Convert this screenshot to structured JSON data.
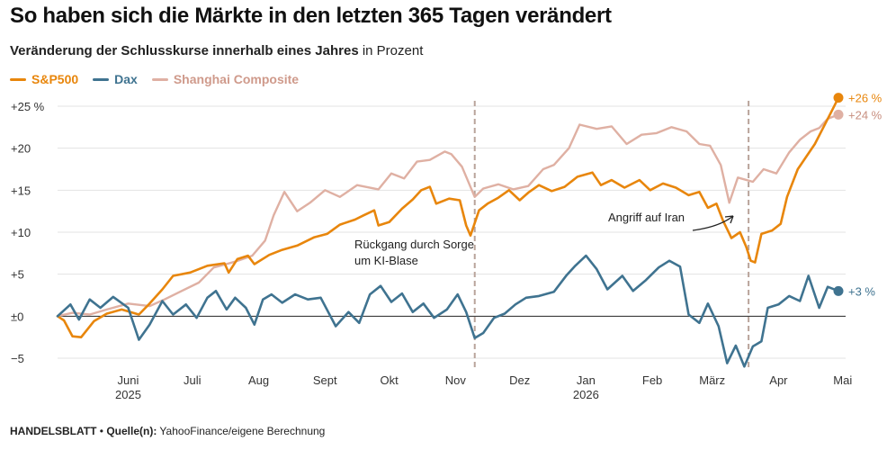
{
  "header": {
    "title": "So haben sich die Märkte in den letzten 365 Tagen verändert",
    "subtitle_bold": "Veränderung der Schlusskurse innerhalb eines Jahres",
    "subtitle_rest": " in Prozent"
  },
  "legend": [
    {
      "label": "S&P500",
      "color": "#e8860c"
    },
    {
      "label": "Dax",
      "color": "#3f7390"
    },
    {
      "label": "Shanghai Composite",
      "color": "#dfb0a3"
    }
  ],
  "footer": {
    "source_bold": "HANDELSBLATT",
    "separator": " • ",
    "source_label": "Quelle(n):",
    "source_text": " YahooFinance/eigene Berechnung"
  },
  "chart_data": {
    "type": "line",
    "title": "So haben sich die Märkte in den letzten 365 Tagen verändert",
    "subtitle": "Veränderung der Schlusskurse innerhalb eines Jahres in Prozent",
    "xlim": [
      "2025-05-13",
      "2026-05-13"
    ],
    "ylim": [
      -6,
      25
    ],
    "y_ticks": [
      -5,
      0,
      5,
      10,
      15,
      20,
      25
    ],
    "y_tick_labels": [
      "−5",
      "±0",
      "+5",
      "+10",
      "+15",
      "+20",
      "+25 %"
    ],
    "x_ticks": [
      {
        "date": "2025-06-15",
        "label": "Juni",
        "year": "2025"
      },
      {
        "date": "2025-07-15",
        "label": "Juli"
      },
      {
        "date": "2025-08-15",
        "label": "Aug"
      },
      {
        "date": "2025-09-15",
        "label": "Sept"
      },
      {
        "date": "2025-10-15",
        "label": "Okt"
      },
      {
        "date": "2025-11-15",
        "label": "Nov"
      },
      {
        "date": "2025-12-15",
        "label": "Dez"
      },
      {
        "date": "2026-01-15",
        "label": "Jan",
        "year": "2026"
      },
      {
        "date": "2026-02-15",
        "label": "Feb"
      },
      {
        "date": "2026-03-15",
        "label": "März"
      },
      {
        "date": "2026-04-15",
        "label": "Apr"
      },
      {
        "date": "2026-05-15",
        "label": "Mai"
      }
    ],
    "grid": "horizontal",
    "legend_position": "top-left",
    "series": [
      {
        "name": "Shanghai Composite",
        "color": "#dfb0a3",
        "end_label": "+24 %",
        "points": [
          [
            "2025-05-13",
            0
          ],
          [
            "2025-05-20",
            0.4
          ],
          [
            "2025-05-28",
            0.2
          ],
          [
            "2025-06-05",
            0.8
          ],
          [
            "2025-06-15",
            1.5
          ],
          [
            "2025-06-25",
            1.2
          ],
          [
            "2025-07-02",
            2.0
          ],
          [
            "2025-07-10",
            3.0
          ],
          [
            "2025-07-18",
            4.0
          ],
          [
            "2025-07-25",
            5.8
          ],
          [
            "2025-08-04",
            6.5
          ],
          [
            "2025-08-12",
            7.2
          ],
          [
            "2025-08-18",
            9.0
          ],
          [
            "2025-08-22",
            12.0
          ],
          [
            "2025-08-27",
            14.8
          ],
          [
            "2025-09-02",
            12.5
          ],
          [
            "2025-09-08",
            13.5
          ],
          [
            "2025-09-15",
            15.0
          ],
          [
            "2025-09-22",
            14.2
          ],
          [
            "2025-09-30",
            15.6
          ],
          [
            "2025-10-10",
            15.1
          ],
          [
            "2025-10-16",
            17.0
          ],
          [
            "2025-10-22",
            16.4
          ],
          [
            "2025-10-28",
            18.4
          ],
          [
            "2025-11-03",
            18.6
          ],
          [
            "2025-11-10",
            19.6
          ],
          [
            "2025-11-13",
            19.3
          ],
          [
            "2025-11-18",
            17.8
          ],
          [
            "2025-11-24",
            14.2
          ],
          [
            "2025-11-28",
            15.2
          ],
          [
            "2025-12-05",
            15.7
          ],
          [
            "2025-12-12",
            15.1
          ],
          [
            "2025-12-19",
            15.5
          ],
          [
            "2025-12-26",
            17.5
          ],
          [
            "2025-12-31",
            18.0
          ],
          [
            "2026-01-07",
            20.0
          ],
          [
            "2026-01-12",
            22.8
          ],
          [
            "2026-01-20",
            22.3
          ],
          [
            "2026-01-27",
            22.6
          ],
          [
            "2026-02-03",
            20.5
          ],
          [
            "2026-02-10",
            21.6
          ],
          [
            "2026-02-17",
            21.8
          ],
          [
            "2026-02-24",
            22.5
          ],
          [
            "2026-03-03",
            22.0
          ],
          [
            "2026-03-09",
            20.5
          ],
          [
            "2026-03-14",
            20.3
          ],
          [
            "2026-03-19",
            18.0
          ],
          [
            "2026-03-23",
            13.5
          ],
          [
            "2026-03-27",
            16.5
          ],
          [
            "2026-04-03",
            16.0
          ],
          [
            "2026-04-08",
            17.5
          ],
          [
            "2026-04-14",
            17.0
          ],
          [
            "2026-04-20",
            19.5
          ],
          [
            "2026-04-25",
            21.0
          ],
          [
            "2026-04-30",
            22.0
          ],
          [
            "2026-05-04",
            22.4
          ],
          [
            "2026-05-08",
            23.5
          ],
          [
            "2026-05-13",
            24.0
          ]
        ]
      },
      {
        "name": "S&P500",
        "color": "#e8860c",
        "end_label": "+26 %",
        "points": [
          [
            "2025-05-13",
            0
          ],
          [
            "2025-05-16",
            -0.5
          ],
          [
            "2025-05-20",
            -2.4
          ],
          [
            "2025-05-24",
            -2.5
          ],
          [
            "2025-05-30",
            -0.6
          ],
          [
            "2025-06-05",
            0.3
          ],
          [
            "2025-06-12",
            0.8
          ],
          [
            "2025-06-20",
            0.2
          ],
          [
            "2025-06-25",
            1.5
          ],
          [
            "2025-07-01",
            3.2
          ],
          [
            "2025-07-06",
            4.8
          ],
          [
            "2025-07-14",
            5.2
          ],
          [
            "2025-07-22",
            6.0
          ],
          [
            "2025-07-30",
            6.3
          ],
          [
            "2025-08-01",
            5.2
          ],
          [
            "2025-08-05",
            6.8
          ],
          [
            "2025-08-10",
            7.2
          ],
          [
            "2025-08-13",
            6.2
          ],
          [
            "2025-08-20",
            7.3
          ],
          [
            "2025-08-26",
            7.9
          ],
          [
            "2025-09-02",
            8.4
          ],
          [
            "2025-09-10",
            9.4
          ],
          [
            "2025-09-16",
            9.8
          ],
          [
            "2025-09-22",
            10.9
          ],
          [
            "2025-09-29",
            11.5
          ],
          [
            "2025-10-03",
            12.0
          ],
          [
            "2025-10-08",
            12.6
          ],
          [
            "2025-10-10",
            10.8
          ],
          [
            "2025-10-15",
            11.2
          ],
          [
            "2025-10-21",
            12.8
          ],
          [
            "2025-10-26",
            13.9
          ],
          [
            "2025-10-30",
            15.0
          ],
          [
            "2025-11-03",
            15.4
          ],
          [
            "2025-11-06",
            13.4
          ],
          [
            "2025-11-12",
            14.0
          ],
          [
            "2025-11-17",
            13.8
          ],
          [
            "2025-11-20",
            10.8
          ],
          [
            "2025-11-22",
            9.6
          ],
          [
            "2025-11-26",
            12.6
          ],
          [
            "2025-11-30",
            13.4
          ],
          [
            "2025-12-05",
            14.1
          ],
          [
            "2025-12-10",
            15.0
          ],
          [
            "2025-12-15",
            13.8
          ],
          [
            "2025-12-19",
            14.7
          ],
          [
            "2025-12-24",
            15.6
          ],
          [
            "2025-12-30",
            14.9
          ],
          [
            "2026-01-05",
            15.4
          ],
          [
            "2026-01-11",
            16.6
          ],
          [
            "2026-01-18",
            17.1
          ],
          [
            "2026-01-22",
            15.6
          ],
          [
            "2026-01-27",
            16.2
          ],
          [
            "2026-02-02",
            15.3
          ],
          [
            "2026-02-09",
            16.2
          ],
          [
            "2026-02-14",
            15.0
          ],
          [
            "2026-02-20",
            15.8
          ],
          [
            "2026-02-26",
            15.3
          ],
          [
            "2026-03-04",
            14.4
          ],
          [
            "2026-03-09",
            14.8
          ],
          [
            "2026-03-13",
            12.9
          ],
          [
            "2026-03-17",
            13.4
          ],
          [
            "2026-03-20",
            11.4
          ],
          [
            "2026-03-24",
            9.3
          ],
          [
            "2026-03-28",
            10.0
          ],
          [
            "2026-03-31",
            8.2
          ],
          [
            "2026-04-02",
            6.6
          ],
          [
            "2026-04-04",
            6.4
          ],
          [
            "2026-04-07",
            9.8
          ],
          [
            "2026-04-12",
            10.2
          ],
          [
            "2026-04-16",
            11.0
          ],
          [
            "2026-04-19",
            14.2
          ],
          [
            "2026-04-24",
            17.5
          ],
          [
            "2026-04-28",
            19.0
          ],
          [
            "2026-05-02",
            20.5
          ],
          [
            "2026-05-06",
            22.5
          ],
          [
            "2026-05-10",
            24.5
          ],
          [
            "2026-05-13",
            26.0
          ]
        ]
      },
      {
        "name": "Dax",
        "color": "#3f7390",
        "end_label": "+3 %",
        "points": [
          [
            "2025-05-13",
            0
          ],
          [
            "2025-05-19",
            1.4
          ],
          [
            "2025-05-23",
            -0.4
          ],
          [
            "2025-05-28",
            2.0
          ],
          [
            "2025-06-02",
            1.0
          ],
          [
            "2025-06-08",
            2.3
          ],
          [
            "2025-06-15",
            1.0
          ],
          [
            "2025-06-20",
            -2.8
          ],
          [
            "2025-06-25",
            -1.0
          ],
          [
            "2025-07-01",
            1.8
          ],
          [
            "2025-07-06",
            0.2
          ],
          [
            "2025-07-12",
            1.4
          ],
          [
            "2025-07-17",
            -0.2
          ],
          [
            "2025-07-22",
            2.2
          ],
          [
            "2025-07-26",
            3.0
          ],
          [
            "2025-07-31",
            0.8
          ],
          [
            "2025-08-04",
            2.2
          ],
          [
            "2025-08-09",
            1.0
          ],
          [
            "2025-08-13",
            -1.0
          ],
          [
            "2025-08-17",
            2.0
          ],
          [
            "2025-08-21",
            2.6
          ],
          [
            "2025-08-26",
            1.6
          ],
          [
            "2025-09-01",
            2.6
          ],
          [
            "2025-09-07",
            2.0
          ],
          [
            "2025-09-13",
            2.2
          ],
          [
            "2025-09-20",
            -1.2
          ],
          [
            "2025-09-26",
            0.5
          ],
          [
            "2025-10-01",
            -0.8
          ],
          [
            "2025-10-06",
            2.6
          ],
          [
            "2025-10-11",
            3.6
          ],
          [
            "2025-10-16",
            1.7
          ],
          [
            "2025-10-21",
            2.7
          ],
          [
            "2025-10-26",
            0.5
          ],
          [
            "2025-10-31",
            1.5
          ],
          [
            "2025-11-05",
            -0.2
          ],
          [
            "2025-11-11",
            0.8
          ],
          [
            "2025-11-16",
            2.6
          ],
          [
            "2025-11-20",
            0.5
          ],
          [
            "2025-11-24",
            -2.6
          ],
          [
            "2025-11-28",
            -2.0
          ],
          [
            "2025-12-03",
            -0.2
          ],
          [
            "2025-12-08",
            0.3
          ],
          [
            "2025-12-13",
            1.4
          ],
          [
            "2025-12-18",
            2.2
          ],
          [
            "2025-12-24",
            2.4
          ],
          [
            "2025-12-31",
            2.9
          ],
          [
            "2026-01-06",
            4.9
          ],
          [
            "2026-01-10",
            6.0
          ],
          [
            "2026-01-15",
            7.2
          ],
          [
            "2026-01-20",
            5.6
          ],
          [
            "2026-01-25",
            3.2
          ],
          [
            "2026-02-01",
            4.8
          ],
          [
            "2026-02-06",
            3.0
          ],
          [
            "2026-02-12",
            4.3
          ],
          [
            "2026-02-18",
            5.8
          ],
          [
            "2026-02-23",
            6.6
          ],
          [
            "2026-02-28",
            5.9
          ],
          [
            "2026-03-04",
            0.2
          ],
          [
            "2026-03-09",
            -0.8
          ],
          [
            "2026-03-13",
            1.5
          ],
          [
            "2026-03-18",
            -1.2
          ],
          [
            "2026-03-22",
            -5.6
          ],
          [
            "2026-03-26",
            -3.5
          ],
          [
            "2026-03-30",
            -6.0
          ],
          [
            "2026-04-03",
            -3.6
          ],
          [
            "2026-04-07",
            -3.0
          ],
          [
            "2026-04-10",
            1.0
          ],
          [
            "2026-04-15",
            1.4
          ],
          [
            "2026-04-20",
            2.4
          ],
          [
            "2026-04-25",
            1.8
          ],
          [
            "2026-04-29",
            4.8
          ],
          [
            "2026-05-04",
            1.0
          ],
          [
            "2026-05-08",
            3.5
          ],
          [
            "2026-05-13",
            3.0
          ]
        ]
      }
    ],
    "annotations": [
      {
        "date": "2025-11-24",
        "lines": [
          "Rückgang durch Sorge",
          "um KI-Blase"
        ]
      },
      {
        "date": "2026-04-01",
        "lines": [
          "Angriff auf Iran"
        ]
      }
    ]
  }
}
